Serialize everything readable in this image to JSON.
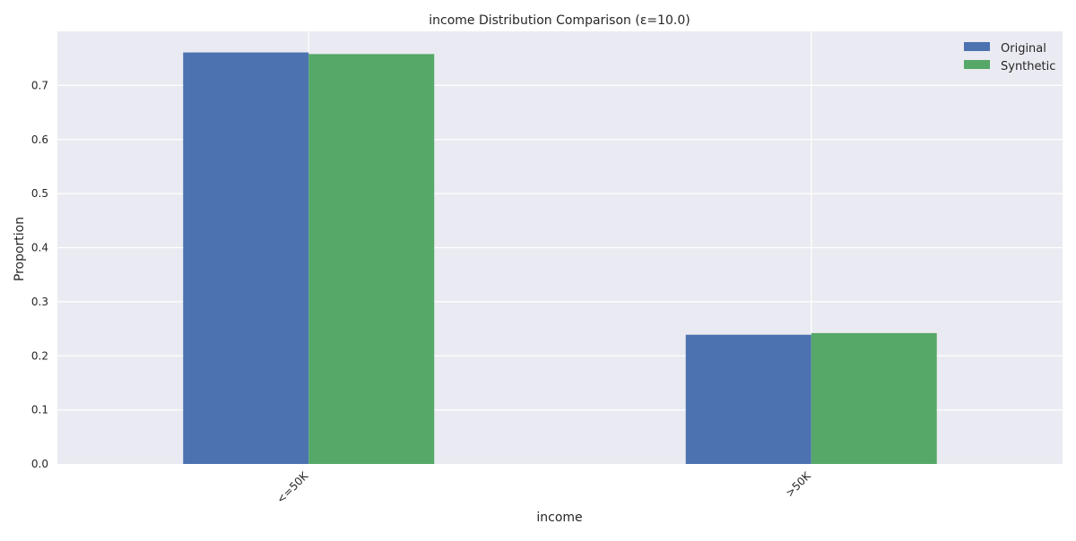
{
  "chart_data": {
    "type": "bar",
    "title": "income Distribution Comparison (ε=10.0)",
    "xlabel": "income",
    "ylabel": "Proportion",
    "categories": [
      "<=50K",
      ">50K"
    ],
    "series": [
      {
        "name": "Original",
        "values": [
          0.761,
          0.239
        ],
        "color": "#4c72b0"
      },
      {
        "name": "Synthetic",
        "values": [
          0.758,
          0.242
        ],
        "color": "#55a868"
      }
    ],
    "ylim": [
      0,
      0.8
    ],
    "yticks": [
      0.0,
      0.1,
      0.2,
      0.3,
      0.4,
      0.5,
      0.6,
      0.7
    ],
    "ytick_labels": [
      "0.0",
      "0.1",
      "0.2",
      "0.3",
      "0.4",
      "0.5",
      "0.6",
      "0.7"
    ],
    "grid": true,
    "plot_background": "#eaeaf2",
    "grid_color": "#ffffff",
    "legend_position": "top-right",
    "xtick_rotation": "45 degrees"
  }
}
